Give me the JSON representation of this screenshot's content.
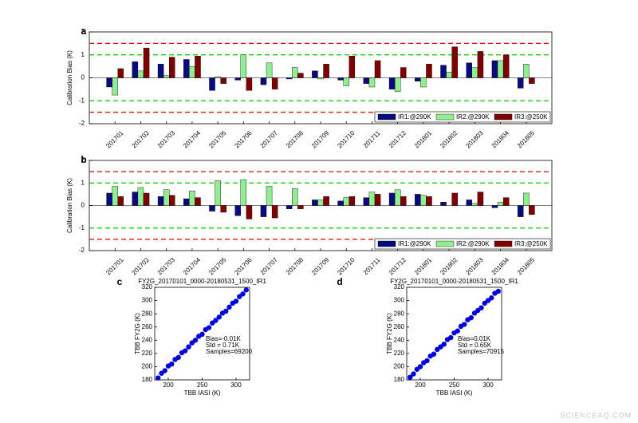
{
  "chart_data": [
    {
      "type": "bar",
      "panel_label": "a",
      "y_label": "Calibration Bias (K)",
      "categories": [
        "201701",
        "201702",
        "201703",
        "201704",
        "201705",
        "201706",
        "201707",
        "201708",
        "201709",
        "201710",
        "201711",
        "201712",
        "201801",
        "201802",
        "201803",
        "201804",
        "201805"
      ],
      "series": [
        {
          "name": "IR1:@290K",
          "color": "#0a0a80",
          "values": [
            -0.4,
            0.7,
            0.6,
            0.8,
            -0.55,
            -0.1,
            -0.3,
            -0.05,
            0.3,
            -0.1,
            -0.25,
            -0.5,
            -0.15,
            0.55,
            0.65,
            0.75,
            -0.45
          ]
        },
        {
          "name": "IR2:@290K",
          "color": "#90ee90",
          "values": [
            -0.75,
            0.3,
            0.1,
            0.5,
            0.05,
            1.0,
            0.65,
            0.45,
            -0.05,
            -0.35,
            -0.4,
            -0.6,
            -0.4,
            0.25,
            0.45,
            0.75,
            0.6
          ]
        },
        {
          "name": "IR3:@250K",
          "color": "#800000",
          "values": [
            0.4,
            1.3,
            0.9,
            0.95,
            -0.25,
            -0.55,
            -0.5,
            0.2,
            0.6,
            0.95,
            0.75,
            0.45,
            0.6,
            1.35,
            1.15,
            1.0,
            -0.25
          ]
        }
      ],
      "reference_lines": [
        {
          "value": 1.5,
          "color": "#dd0000"
        },
        {
          "value": 1,
          "color": "#00cc00"
        },
        {
          "value": -1,
          "color": "#00cc00"
        },
        {
          "value": -1.5,
          "color": "#dd0000"
        }
      ],
      "ylim": [
        -2,
        2
      ],
      "yticks": [
        -2,
        -1,
        0,
        1,
        2
      ],
      "legend": "lower right"
    },
    {
      "type": "bar",
      "panel_label": "b",
      "y_label": "Calibration Bias (K)",
      "categories": [
        "201701",
        "201702",
        "201703",
        "201704",
        "201705",
        "201706",
        "201707",
        "201708",
        "201709",
        "201710",
        "201711",
        "201712",
        "201801",
        "201802",
        "201803",
        "201804",
        "201805"
      ],
      "series": [
        {
          "name": "IR1:@290K",
          "color": "#0a0a80",
          "values": [
            0.55,
            0.6,
            0.4,
            0.3,
            -0.25,
            -0.45,
            -0.5,
            -0.15,
            0.25,
            0.2,
            0.35,
            0.55,
            0.5,
            0.15,
            0.25,
            -0.1,
            -0.5
          ]
        },
        {
          "name": "IR2:@290K",
          "color": "#90ee90",
          "values": [
            0.85,
            0.8,
            0.7,
            0.65,
            1.1,
            1.15,
            0.85,
            0.75,
            0.25,
            0.35,
            0.6,
            0.7,
            0.45,
            0.0,
            0.1,
            0.15,
            0.55
          ]
        },
        {
          "name": "IR3:@250K",
          "color": "#800000",
          "values": [
            0.4,
            0.55,
            0.45,
            0.35,
            -0.3,
            -0.6,
            -0.55,
            -0.15,
            0.4,
            0.4,
            0.5,
            0.4,
            0.4,
            0.55,
            0.6,
            0.35,
            -0.4
          ]
        }
      ],
      "reference_lines": [
        {
          "value": 1.5,
          "color": "#dd0000"
        },
        {
          "value": 1,
          "color": "#00cc00"
        },
        {
          "value": -1,
          "color": "#00cc00"
        },
        {
          "value": -1.5,
          "color": "#dd0000"
        }
      ],
      "ylim": [
        -2,
        2
      ],
      "yticks": [
        -2,
        -1,
        0,
        1,
        2
      ],
      "legend": "lower right"
    },
    {
      "type": "scatter",
      "panel_label": "c",
      "title": "FY2G_20170101_0000-20180531_1500_IR1",
      "x_label": "TBB IASI (K)",
      "y_label": "TBB FY2G (K)",
      "color": "#0000dd",
      "x": [
        185,
        190,
        195,
        200,
        205,
        210,
        215,
        220,
        225,
        230,
        235,
        240,
        245,
        250,
        255,
        260,
        265,
        270,
        275,
        280,
        285,
        290,
        295,
        300,
        305,
        310,
        315
      ],
      "y": [
        183,
        190,
        194,
        201,
        204,
        211,
        214,
        221,
        224,
        230,
        236,
        240,
        246,
        249,
        256,
        259,
        266,
        270,
        275,
        281,
        284,
        290,
        296,
        299,
        306,
        310,
        316
      ],
      "annotations": [
        "Bias=-0.01K",
        "Std = 0.71K",
        "Samples=69200"
      ],
      "xlim": [
        180,
        320
      ],
      "xticks": [
        200,
        250,
        300
      ],
      "ylim": [
        180,
        320
      ],
      "yticks": [
        180,
        200,
        220,
        240,
        260,
        280,
        300,
        320
      ]
    },
    {
      "type": "scatter",
      "panel_label": "d",
      "title": "FY2G_20170101_0000-20180531_1500_IR1",
      "x_label": "TBB IASI (K)",
      "y_label": "TBB FY2G (K)",
      "color": "#0000dd",
      "x": [
        185,
        190,
        195,
        200,
        205,
        210,
        215,
        220,
        225,
        230,
        235,
        240,
        245,
        250,
        255,
        260,
        265,
        270,
        275,
        280,
        285,
        290,
        295,
        300,
        305,
        310,
        315
      ],
      "y": [
        184,
        189,
        196,
        200,
        206,
        209,
        216,
        219,
        226,
        230,
        234,
        241,
        244,
        251,
        254,
        261,
        264,
        271,
        274,
        281,
        285,
        289,
        296,
        300,
        304,
        311,
        314
      ],
      "annotations": [
        "Bias=0.01K",
        "Std = 0.65K",
        "Samples=70915"
      ],
      "xlim": [
        180,
        320
      ],
      "xticks": [
        200,
        250,
        300
      ],
      "ylim": [
        180,
        320
      ],
      "yticks": [
        180,
        200,
        220,
        240,
        260,
        280,
        300,
        320
      ]
    }
  ],
  "watermark": "SCIENCEAQ.COM"
}
